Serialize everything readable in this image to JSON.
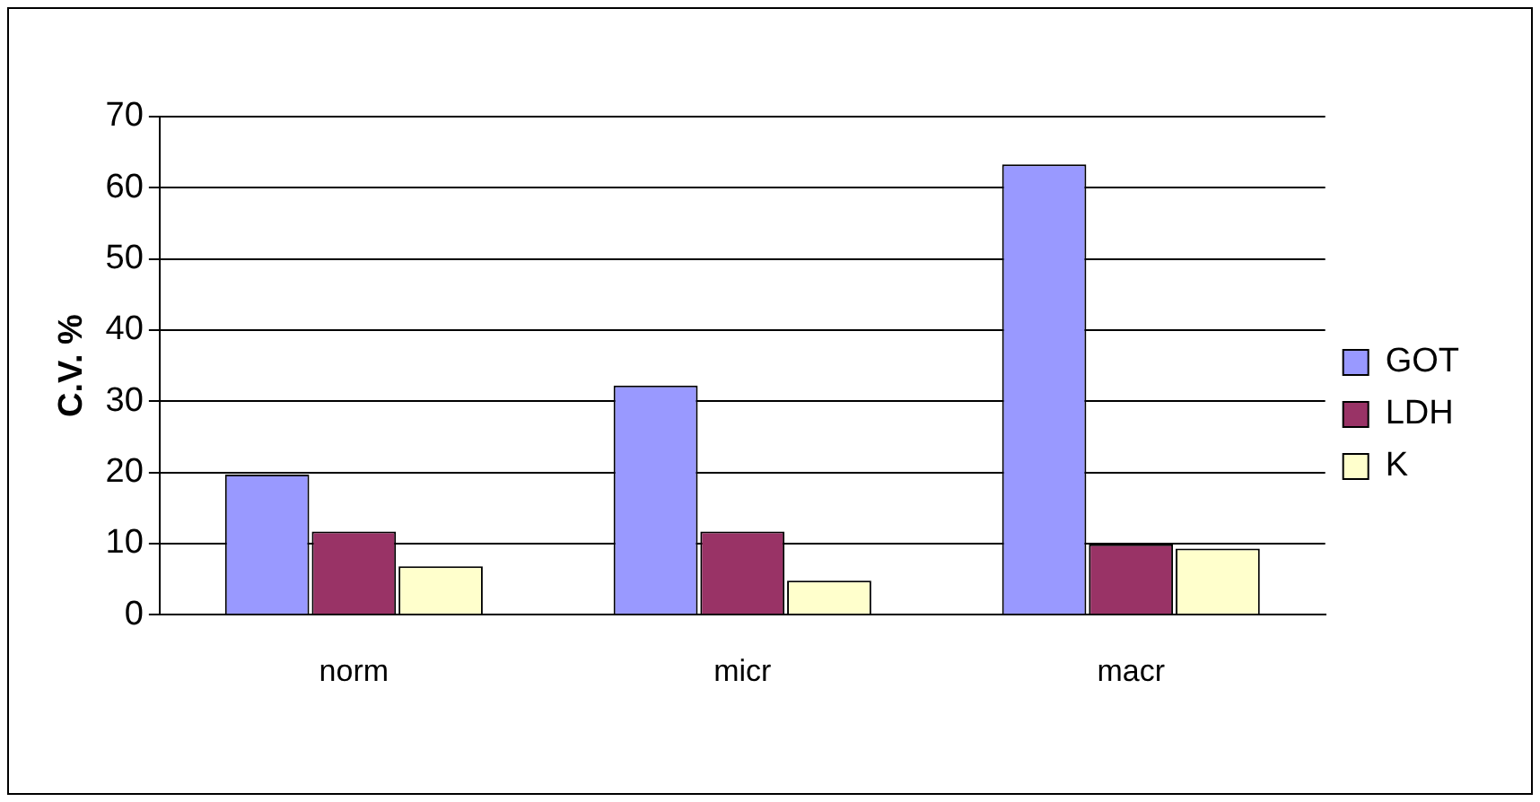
{
  "chart_data": {
    "type": "bar",
    "ylabel": "C.V. %",
    "categories": [
      "norm",
      "micr",
      "macr"
    ],
    "series": [
      {
        "name": "GOT",
        "color": "#9999ff",
        "values": [
          19.7,
          32.2,
          63.3
        ]
      },
      {
        "name": "LDH",
        "color": "#993366",
        "values": [
          11.7,
          11.7,
          9.9
        ]
      },
      {
        "name": "K",
        "color": "#ffffcc",
        "values": [
          6.8,
          4.8,
          9.3
        ]
      }
    ],
    "ylim": [
      0,
      70
    ],
    "yticks": [
      0,
      10,
      20,
      30,
      40,
      50,
      60,
      70
    ],
    "grid": "y",
    "legend": "right"
  }
}
